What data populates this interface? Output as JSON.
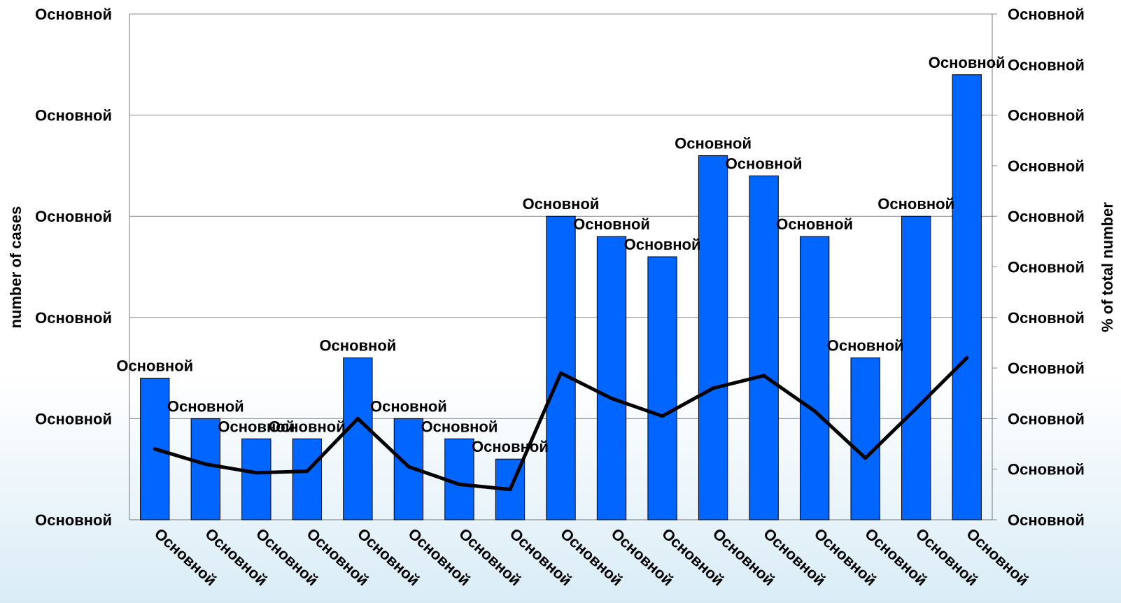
{
  "chart_data": {
    "type": "bar",
    "categories": [
      "Основной",
      "Основной",
      "Основной",
      "Основной",
      "Основной",
      "Основной",
      "Основной",
      "Основной",
      "Основной",
      "Основной",
      "Основной",
      "Основной",
      "Основной",
      "Основной",
      "Основной",
      "Основной",
      "Основной"
    ],
    "series": [
      {
        "type": "bar",
        "axis": "left",
        "color": "#0066FF",
        "values": [
          7,
          5,
          4,
          4,
          8,
          5,
          4,
          3,
          15,
          14,
          13,
          18,
          17,
          14,
          8,
          15,
          22
        ],
        "data_labels": [
          "Основной",
          "Основной",
          "Основной",
          "Основной",
          "Основной",
          "Основной",
          "Основной",
          "Основной",
          "Основной",
          "Основной",
          "Основной",
          "Основной",
          "Основной",
          "Основной",
          "Основной",
          "Основной",
          "Основной"
        ]
      },
      {
        "type": "line",
        "axis": "right",
        "color": "#000000",
        "values": [
          1.4,
          1.1,
          0.93,
          0.96,
          2.0,
          1.05,
          0.7,
          0.6,
          2.9,
          2.4,
          2.05,
          2.6,
          2.85,
          2.15,
          1.22,
          2.2,
          3.2
        ]
      }
    ],
    "left_axis": {
      "label": "number of cases",
      "range": [
        0,
        25
      ],
      "tick_labels": [
        "Основной",
        "Основной",
        "Основной",
        "Основной",
        "Основной",
        "Основной"
      ]
    },
    "right_axis": {
      "label": "% of total number",
      "range": [
        0,
        10
      ],
      "tick_labels": [
        "Основной",
        "Основной",
        "Основной",
        "Основной",
        "Основной",
        "Основной",
        "Основной",
        "Основной",
        "Основной",
        "Основной",
        "Основной"
      ]
    },
    "grid": true,
    "legend": "none"
  }
}
